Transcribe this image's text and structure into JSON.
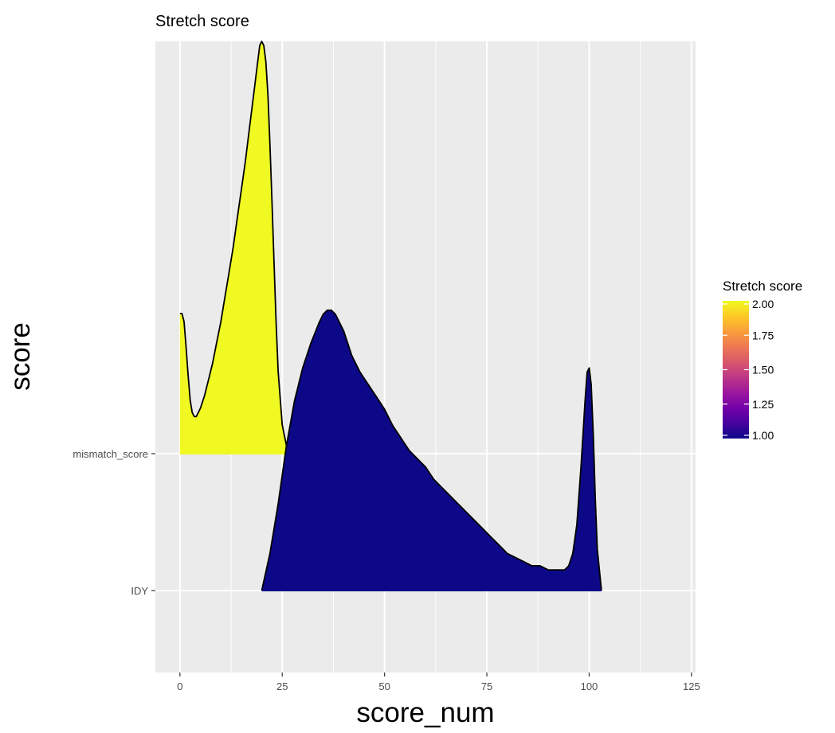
{
  "chart_data": {
    "type": "ridgeline-density",
    "title": "Stretch score",
    "xlabel": "score_num",
    "ylabel": "score",
    "xlim": [
      -6,
      126
    ],
    "x_ticks": [
      0,
      25,
      50,
      75,
      100,
      125
    ],
    "x_tick_labels": [
      "0",
      "25",
      "50",
      "75",
      "100",
      "125"
    ],
    "categories": [
      "IDY",
      "mismatch_score"
    ],
    "series": [
      {
        "name": "mismatch_score",
        "stretch_score": 2.0,
        "fill": "#F0F921",
        "x": [
          0,
          0.5,
          1,
          1.5,
          2,
          2.5,
          3,
          3.5,
          4,
          5,
          6,
          7,
          8,
          9,
          10,
          11,
          12,
          13,
          14,
          15,
          16,
          17,
          18,
          19,
          19.5,
          20,
          20.5,
          21,
          21.5,
          22,
          22.5,
          23,
          23.5,
          24,
          25,
          26,
          27
        ],
        "density": [
          0.34,
          0.34,
          0.32,
          0.26,
          0.19,
          0.13,
          0.1,
          0.09,
          0.09,
          0.11,
          0.14,
          0.18,
          0.22,
          0.27,
          0.32,
          0.38,
          0.44,
          0.5,
          0.57,
          0.64,
          0.71,
          0.79,
          0.87,
          0.95,
          0.99,
          1.0,
          0.99,
          0.95,
          0.87,
          0.75,
          0.61,
          0.46,
          0.32,
          0.2,
          0.07,
          0.02,
          0.0
        ]
      },
      {
        "name": "IDY",
        "stretch_score": 1.0,
        "fill": "#0D0887",
        "x": [
          20,
          22,
          24,
          26,
          28,
          30,
          32,
          34,
          35,
          36,
          37,
          38,
          40,
          42,
          44,
          46,
          48,
          50,
          52,
          54,
          56,
          58,
          60,
          62,
          64,
          66,
          68,
          70,
          72,
          74,
          76,
          78,
          80,
          82,
          84,
          86,
          88,
          90,
          92,
          94,
          95,
          96,
          97,
          98,
          99,
          99.5,
          100,
          100.5,
          101,
          101.5,
          102,
          103
        ],
        "density": [
          0.0,
          0.09,
          0.21,
          0.35,
          0.46,
          0.54,
          0.6,
          0.65,
          0.67,
          0.68,
          0.68,
          0.67,
          0.63,
          0.57,
          0.53,
          0.5,
          0.47,
          0.44,
          0.4,
          0.37,
          0.34,
          0.32,
          0.3,
          0.27,
          0.25,
          0.23,
          0.21,
          0.19,
          0.17,
          0.15,
          0.13,
          0.11,
          0.09,
          0.08,
          0.07,
          0.06,
          0.06,
          0.05,
          0.05,
          0.05,
          0.06,
          0.09,
          0.16,
          0.3,
          0.46,
          0.53,
          0.54,
          0.5,
          0.38,
          0.22,
          0.1,
          0.0
        ]
      }
    ],
    "legend": {
      "title": "Stretch score",
      "position": "right",
      "min": 1.0,
      "max": 2.0,
      "breaks": [
        2.0,
        1.75,
        1.5,
        1.25,
        1.0
      ],
      "labels": [
        "2.00",
        "1.75",
        "1.50",
        "1.25",
        "1.00"
      ],
      "palette": [
        "#0D0887",
        "#47039F",
        "#7301A8",
        "#9C179E",
        "#BD3786",
        "#D8576B",
        "#ED7953",
        "#FA9E3B",
        "#FDC926",
        "#F0F921"
      ]
    },
    "grid": true,
    "panel_background": "#EBEBEB"
  }
}
